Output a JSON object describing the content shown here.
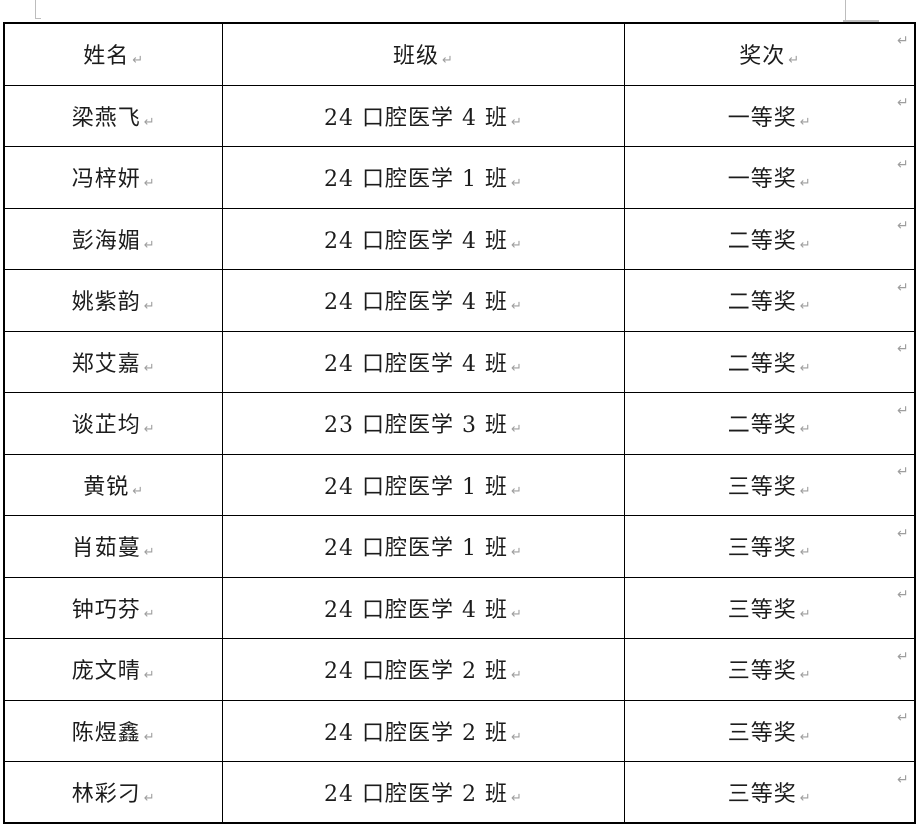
{
  "colors": {
    "border": "#000000",
    "text": "#1c1c1c",
    "mark": "#9e9e9e",
    "artifact": "#bdbdbd",
    "bg": "#ffffff"
  },
  "marks": {
    "cell": "↵",
    "row": "↵"
  },
  "table": {
    "columns": [
      {
        "key": "name",
        "label": "姓名"
      },
      {
        "key": "class",
        "label": "班级"
      },
      {
        "key": "award",
        "label": "奖次"
      }
    ],
    "rows": [
      {
        "name": "梁燕飞",
        "class": "24 口腔医学 4 班",
        "award": "一等奖"
      },
      {
        "name": "冯梓妍",
        "class": "24 口腔医学 1 班",
        "award": "一等奖"
      },
      {
        "name": "彭海媚",
        "class": "24 口腔医学 4 班",
        "award": "二等奖"
      },
      {
        "name": "姚紫韵",
        "class": "24 口腔医学 4 班",
        "award": "二等奖"
      },
      {
        "name": "郑艾嘉",
        "class": "24 口腔医学 4 班",
        "award": "二等奖"
      },
      {
        "name": "谈芷均",
        "class": "23 口腔医学 3 班",
        "award": "二等奖"
      },
      {
        "name": "黄锐",
        "class": "24 口腔医学 1 班",
        "award": "三等奖"
      },
      {
        "name": "肖茹蔓",
        "class": "24 口腔医学 1 班",
        "award": "三等奖"
      },
      {
        "name": "钟巧芬",
        "class": "24 口腔医学 4 班",
        "award": "三等奖"
      },
      {
        "name": "庞文晴",
        "class": "24 口腔医学 2 班",
        "award": "三等奖"
      },
      {
        "name": "陈煜鑫",
        "class": "24 口腔医学 2 班",
        "award": "三等奖"
      },
      {
        "name": "林彩刁",
        "class": "24 口腔医学 2 班",
        "award": "三等奖"
      }
    ]
  }
}
